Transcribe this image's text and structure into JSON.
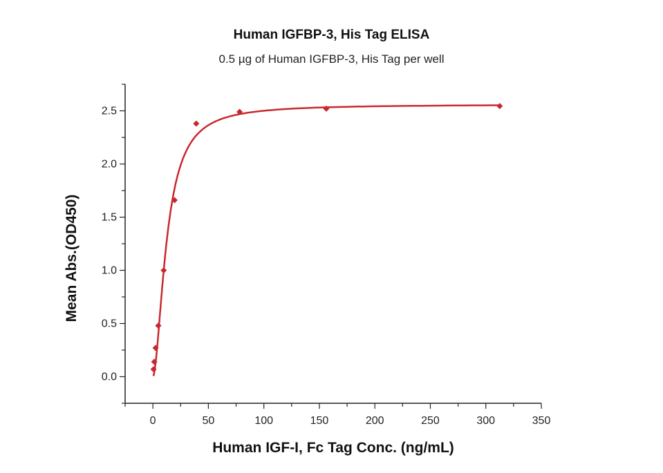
{
  "chart_data": {
    "type": "scatter",
    "title": "Human IGFBP-3, His Tag ELISA",
    "subtitle": "0.5 µg of Human IGFBP-3, His Tag per well",
    "xlabel": "Human IGF-I, Fc Tag Conc. (ng/mL)",
    "ylabel": "Mean Abs.(OD450)",
    "xlim": [
      -25,
      350
    ],
    "ylim": [
      -0.25,
      2.75
    ],
    "xticks": [
      0,
      50,
      100,
      150,
      200,
      250,
      300,
      350
    ],
    "yticks": [
      "0.0",
      "0.5",
      "1.0",
      "1.5",
      "2.0",
      "2.5"
    ],
    "grid": false,
    "color": "#c8282d",
    "marker": "diamond",
    "fit": "smooth sigmoid curve",
    "points": [
      {
        "x": 0.61,
        "y": 0.07
      },
      {
        "x": 1.22,
        "y": 0.14
      },
      {
        "x": 2.44,
        "y": 0.27
      },
      {
        "x": 4.88,
        "y": 0.48
      },
      {
        "x": 9.77,
        "y": 1.0
      },
      {
        "x": 19.53,
        "y": 1.66
      },
      {
        "x": 39.06,
        "y": 2.38
      },
      {
        "x": 78.13,
        "y": 2.49
      },
      {
        "x": 156.25,
        "y": 2.52
      },
      {
        "x": 312.5,
        "y": 2.545
      }
    ]
  }
}
